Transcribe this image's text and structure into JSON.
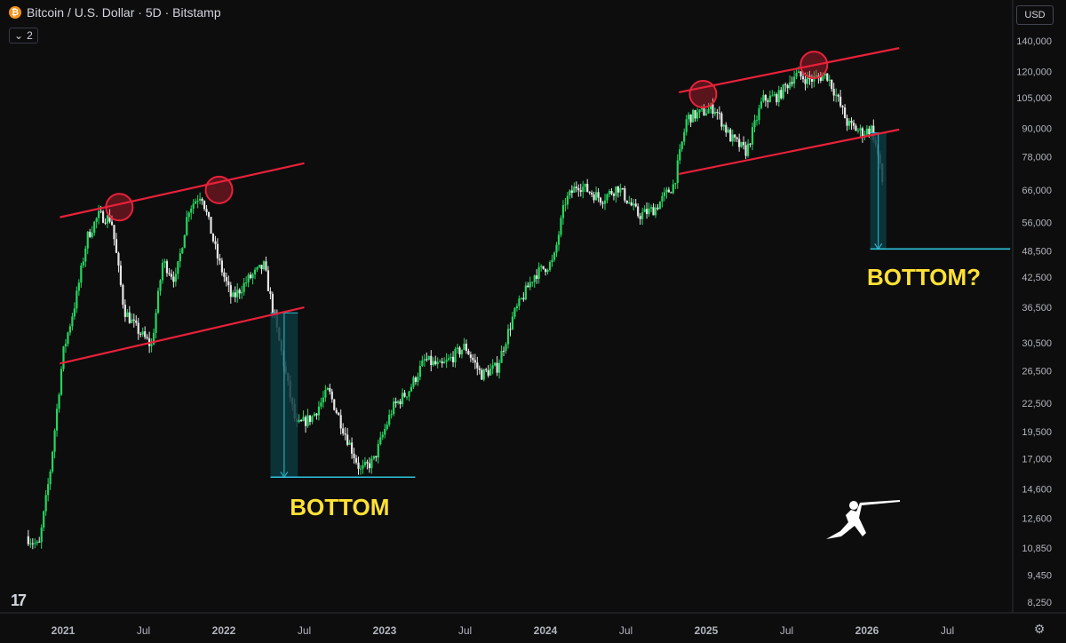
{
  "header": {
    "title": "Bitcoin / U.S. Dollar · 5D · Bitstamp",
    "indicator_count": "2",
    "currency": "USD",
    "icon_name": "bitcoin-icon"
  },
  "colors": {
    "background": "#0d0d0d",
    "up": "#26d65e",
    "down": "#e6e6e6",
    "channel": "#e8213a",
    "target": "#2ec4dc",
    "box": "#0c3a40",
    "annotation": "#ffe135"
  },
  "chart_data": {
    "type": "candlestick",
    "y_scale": "log",
    "y_ticks": [
      140000,
      120000,
      105000,
      90000,
      78000,
      66000,
      56000,
      48500,
      42500,
      36500,
      30500,
      26500,
      22500,
      19500,
      17000,
      14600,
      12600,
      10850,
      9450,
      8250
    ],
    "x_ticks": [
      {
        "label": "2021",
        "t": 2021.0
      },
      {
        "label": "Jul",
        "t": 2021.5
      },
      {
        "label": "2022",
        "t": 2022.0
      },
      {
        "label": "Jul",
        "t": 2022.5
      },
      {
        "label": "2023",
        "t": 2023.0
      },
      {
        "label": "Jul",
        "t": 2023.5
      },
      {
        "label": "2024",
        "t": 2024.0
      },
      {
        "label": "Jul",
        "t": 2024.5
      },
      {
        "label": "2025",
        "t": 2025.0
      },
      {
        "label": "Jul",
        "t": 2025.5
      },
      {
        "label": "2026",
        "t": 2026.0
      },
      {
        "label": "Jul",
        "t": 2026.5
      }
    ],
    "price_path": [
      [
        2020.77,
        11500
      ],
      [
        2020.85,
        10900
      ],
      [
        2020.92,
        16000
      ],
      [
        2021.0,
        29000
      ],
      [
        2021.08,
        38000
      ],
      [
        2021.15,
        52000
      ],
      [
        2021.22,
        58000
      ],
      [
        2021.3,
        57000
      ],
      [
        2021.38,
        36000
      ],
      [
        2021.45,
        33000
      ],
      [
        2021.55,
        30000
      ],
      [
        2021.62,
        46000
      ],
      [
        2021.7,
        42000
      ],
      [
        2021.78,
        60000
      ],
      [
        2021.86,
        65000
      ],
      [
        2021.96,
        47000
      ],
      [
        2022.05,
        38000
      ],
      [
        2022.15,
        42000
      ],
      [
        2022.25,
        45000
      ],
      [
        2022.35,
        30000
      ],
      [
        2022.45,
        20000
      ],
      [
        2022.55,
        21000
      ],
      [
        2022.65,
        24000
      ],
      [
        2022.75,
        19500
      ],
      [
        2022.85,
        16000
      ],
      [
        2022.93,
        16800
      ],
      [
        2023.05,
        22000
      ],
      [
        2023.15,
        24000
      ],
      [
        2023.25,
        28000
      ],
      [
        2023.35,
        27000
      ],
      [
        2023.5,
        30000
      ],
      [
        2023.6,
        26000
      ],
      [
        2023.7,
        27000
      ],
      [
        2023.8,
        35000
      ],
      [
        2023.93,
        43000
      ],
      [
        2024.05,
        46000
      ],
      [
        2024.12,
        62000
      ],
      [
        2024.2,
        68000
      ],
      [
        2024.35,
        63000
      ],
      [
        2024.45,
        67000
      ],
      [
        2024.58,
        58000
      ],
      [
        2024.68,
        60000
      ],
      [
        2024.8,
        68000
      ],
      [
        2024.88,
        95000
      ],
      [
        2024.96,
        97000
      ],
      [
        2025.05,
        100000
      ],
      [
        2025.15,
        86000
      ],
      [
        2025.25,
        80000
      ],
      [
        2025.35,
        104000
      ],
      [
        2025.45,
        106000
      ],
      [
        2025.55,
        118000
      ],
      [
        2025.65,
        115000
      ],
      [
        2025.75,
        118000
      ],
      [
        2025.8,
        108000
      ],
      [
        2025.88,
        92000
      ],
      [
        2025.97,
        88000
      ],
      [
        2026.03,
        90000
      ],
      [
        2026.07,
        78000
      ],
      [
        2026.1,
        67000
      ]
    ],
    "channels": [
      {
        "name": "channel-2021-upper",
        "p1": [
          2020.98,
          57500
        ],
        "p2": [
          2022.5,
          75500
        ]
      },
      {
        "name": "channel-2021-lower",
        "p1": [
          2020.98,
          27500
        ],
        "p2": [
          2022.5,
          36500
        ]
      },
      {
        "name": "channel-2025-upper",
        "p1": [
          2024.83,
          108000
        ],
        "p2": [
          2026.2,
          135000
        ]
      },
      {
        "name": "channel-2025-lower",
        "p1": [
          2024.83,
          71500
        ],
        "p2": [
          2026.2,
          89500
        ]
      }
    ],
    "circles": [
      {
        "t": 2021.35,
        "price": 60500
      },
      {
        "t": 2021.97,
        "price": 66000
      },
      {
        "t": 2024.98,
        "price": 107000
      },
      {
        "t": 2025.67,
        "price": 124000
      }
    ],
    "measurements": [
      {
        "t0": 2022.29,
        "t1": 2022.46,
        "top": 35500,
        "bottom": 15500,
        "line_end": 2023.19
      },
      {
        "t0": 2026.02,
        "t1": 2026.12,
        "top": 88000,
        "bottom": 49000,
        "line_end": 2026.89
      }
    ],
    "annotations": [
      {
        "text": "BOTTOM",
        "t": 2022.41,
        "price": 12800
      },
      {
        "text": "BOTTOM?",
        "t": 2026.0,
        "price": 40800
      }
    ]
  }
}
